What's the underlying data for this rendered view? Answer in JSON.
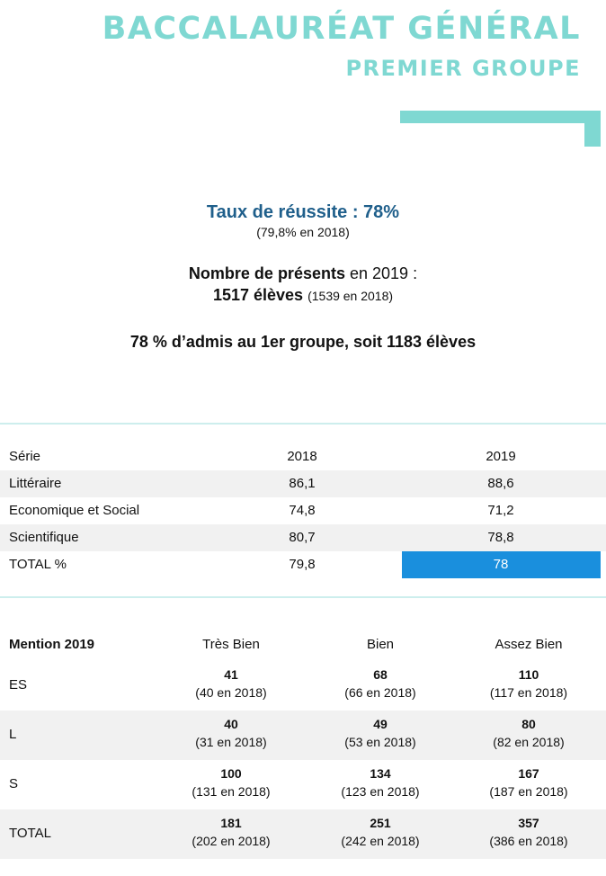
{
  "header": {
    "title": "BACCALAURÉAT GÉNÉRAL",
    "subtitle": "PREMIER GROUPE"
  },
  "summary": {
    "rate": "Taux de réussite : 78%",
    "rate_note": "(79,8% en 2018)",
    "present_label": "Nombre de présents",
    "present_year": "en 2019 :",
    "present_count": "1517 élèves",
    "present_note": "(1539 en 2018)",
    "admitted": "78 % d’admis au 1er groupe, soit 1183 élèves"
  },
  "table": {
    "header": [
      "Série",
      "2018",
      "2019"
    ],
    "rows": [
      [
        "Littéraire",
        "86,1",
        "88,6"
      ],
      [
        "Economique et Social",
        "74,8",
        "71,2"
      ],
      [
        "Scientifique",
        "80,7",
        "78,8"
      ],
      [
        "TOTAL %",
        "79,8",
        "78"
      ]
    ]
  },
  "mentions": {
    "header": [
      "Mention 2019",
      "Très Bien",
      "Bien",
      "Assez Bien"
    ],
    "rows": [
      {
        "label": "ES",
        "cells": [
          {
            "value": "41",
            "note": "(40 en 2018)"
          },
          {
            "value": "68",
            "note": "(66 en 2018)"
          },
          {
            "value": "110",
            "note": "(117 en 2018)"
          }
        ]
      },
      {
        "label": "L",
        "cells": [
          {
            "value": "40",
            "note": "(31 en 2018)"
          },
          {
            "value": "49",
            "note": "(53 en 2018)"
          },
          {
            "value": "80",
            "note": "(82 en 2018)"
          }
        ]
      },
      {
        "label": "S",
        "cells": [
          {
            "value": "100",
            "note": "(131 en 2018)"
          },
          {
            "value": "134",
            "note": "(123 en 2018)"
          },
          {
            "value": "167",
            "note": "(187 en 2018)"
          }
        ]
      },
      {
        "label": "TOTAL",
        "cells": [
          {
            "value": "181",
            "note": "(202 en 2018)"
          },
          {
            "value": "251",
            "note": "(242 en 2018)"
          },
          {
            "value": "357",
            "note": "(386 en 2018)"
          }
        ]
      }
    ]
  }
}
